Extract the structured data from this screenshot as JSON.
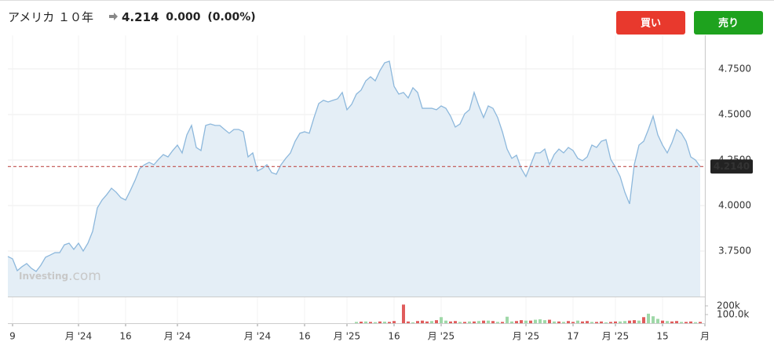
{
  "header": {
    "name": "アメリカ １０年",
    "price": "4.214",
    "change": "0.000",
    "change_pct": "(0.00%)"
  },
  "buttons": {
    "buy": "買い",
    "sell": "売り"
  },
  "chart_data": {
    "type": "area",
    "color": "#8db8dc",
    "fill": "#e4eef6",
    "watermark": {
      "brand": "Investing",
      "suffix": ".com"
    },
    "values": [
      3.72,
      3.707,
      3.642,
      3.664,
      3.681,
      3.655,
      3.638,
      3.672,
      3.716,
      3.728,
      3.741,
      3.741,
      3.784,
      3.793,
      3.759,
      3.793,
      3.75,
      3.793,
      3.858,
      3.987,
      4.03,
      4.06,
      4.095,
      4.073,
      4.043,
      4.03,
      4.082,
      4.138,
      4.203,
      4.224,
      4.237,
      4.224,
      4.254,
      4.28,
      4.267,
      4.302,
      4.332,
      4.289,
      4.388,
      4.44,
      4.319,
      4.302,
      4.44,
      4.448,
      4.44,
      4.44,
      4.418,
      4.397,
      4.418,
      4.418,
      4.405,
      4.267,
      4.289,
      4.19,
      4.203,
      4.224,
      4.181,
      4.172,
      4.224,
      4.259,
      4.289,
      4.353,
      4.397,
      4.405,
      4.397,
      4.483,
      4.56,
      4.578,
      4.569,
      4.578,
      4.586,
      4.621,
      4.526,
      4.556,
      4.612,
      4.634,
      4.685,
      4.707,
      4.685,
      4.741,
      4.784,
      4.793,
      4.655,
      4.612,
      4.621,
      4.591,
      4.647,
      4.621,
      4.534,
      4.534,
      4.534,
      4.526,
      4.547,
      4.534,
      4.491,
      4.431,
      4.448,
      4.504,
      4.526,
      4.621,
      4.547,
      4.483,
      4.547,
      4.534,
      4.483,
      4.405,
      4.31,
      4.259,
      4.276,
      4.203,
      4.159,
      4.224,
      4.289,
      4.289,
      4.31,
      4.224,
      4.28,
      4.31,
      4.289,
      4.319,
      4.302,
      4.259,
      4.246,
      4.267,
      4.332,
      4.319,
      4.353,
      4.362,
      4.254,
      4.211,
      4.159,
      4.073,
      4.009,
      4.224,
      4.332,
      4.353,
      4.418,
      4.491,
      4.388,
      4.332,
      4.289,
      4.345,
      4.418,
      4.397,
      4.353,
      4.267,
      4.25,
      4.214
    ],
    "xlim": [
      0,
      148
    ],
    "xticks": [
      {
        "value": 1,
        "label": "9"
      },
      {
        "value": 15,
        "label": "月 '24"
      },
      {
        "value": 25,
        "label": "16"
      },
      {
        "value": 36,
        "label": "月 '24"
      },
      {
        "value": 53,
        "label": "月 '24"
      },
      {
        "value": 63,
        "label": "16"
      },
      {
        "value": 72,
        "label": "月 '25"
      },
      {
        "value": 82,
        "label": "16"
      },
      {
        "value": 92,
        "label": "月 '25"
      },
      {
        "value": 110,
        "label": "月 '25"
      },
      {
        "value": 120,
        "label": "17"
      },
      {
        "value": 129,
        "label": "月 '25"
      },
      {
        "value": 139,
        "label": "15"
      },
      {
        "value": 148,
        "label": "月"
      }
    ],
    "ylim": [
      3.5,
      4.935
    ],
    "yticks": [
      {
        "value": 3.75,
        "label": "3.7500"
      },
      {
        "value": 4.0,
        "label": "4.0000"
      },
      {
        "value": 4.25,
        "label": "4.2500"
      },
      {
        "value": 4.5,
        "label": "4.5000"
      },
      {
        "value": 4.75,
        "label": "4.7500"
      }
    ],
    "grid": true,
    "last": {
      "value": 4.214,
      "label": "4.2140",
      "color": "#c0504d"
    },
    "volume": {
      "ylim": [
        0,
        290000
      ],
      "yticks": [
        {
          "value": 100000,
          "label": "100.0k"
        },
        {
          "value": 200000,
          "label": "200k"
        }
      ],
      "up": {
        "color": "#9fd8a8",
        "x": [
          74,
          76,
          78,
          80,
          86,
          90,
          92,
          93,
          96,
          98,
          100,
          102,
          104,
          106,
          107,
          110,
          112,
          113,
          114,
          116,
          118,
          121,
          124,
          127,
          130,
          131,
          134,
          136,
          137,
          138,
          140,
          143,
          146
        ],
        "values": [
          15000,
          20000,
          12000,
          18000,
          10000,
          25000,
          70000,
          30000,
          15000,
          20000,
          25000,
          30000,
          15000,
          75000,
          20000,
          30000,
          40000,
          45000,
          35000,
          20000,
          15000,
          30000,
          15000,
          10000,
          20000,
          25000,
          30000,
          110000,
          80000,
          50000,
          25000,
          15000,
          12000
        ]
      },
      "down": {
        "color": "#e05c5c",
        "x": [
          75,
          77,
          79,
          81,
          82,
          84,
          85,
          87,
          88,
          89,
          91,
          94,
          95,
          97,
          99,
          101,
          103,
          105,
          108,
          109,
          111,
          115,
          117,
          119,
          120,
          122,
          123,
          125,
          126,
          128,
          129,
          132,
          133,
          135,
          139,
          141,
          142,
          144,
          145,
          147
        ],
        "values": [
          18000,
          15000,
          20000,
          15000,
          25000,
          215000,
          20000,
          25000,
          30000,
          20000,
          35000,
          20000,
          25000,
          15000,
          20000,
          30000,
          25000,
          15000,
          25000,
          35000,
          30000,
          40000,
          20000,
          25000,
          15000,
          20000,
          25000,
          15000,
          20000,
          15000,
          20000,
          30000,
          35000,
          70000,
          30000,
          20000,
          25000,
          15000,
          20000,
          15000
        ]
      }
    }
  }
}
